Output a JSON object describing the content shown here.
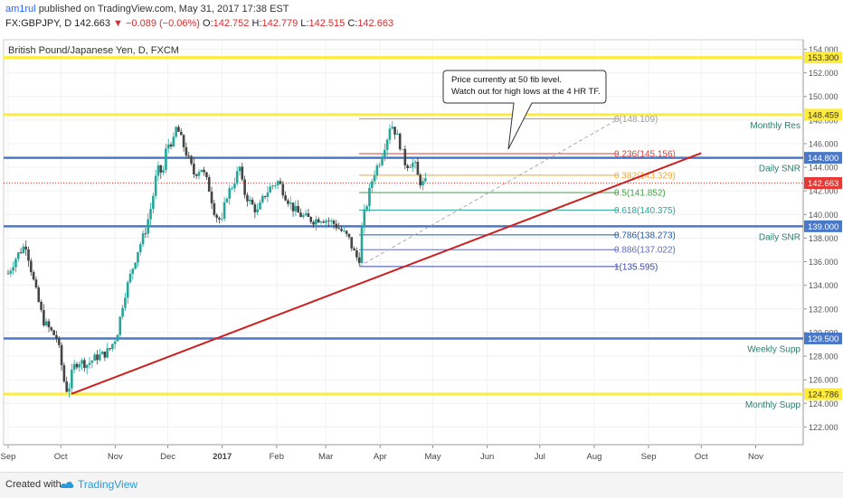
{
  "header": {
    "author": "am1rul",
    "published": "published on TradingView.com, May 31, 2017 17:38 EST",
    "symbol": "FX:GBPJPY, D",
    "last": "142.663",
    "change": "−0.089 (−0.06%)",
    "o_label": "O:",
    "o_value": "142.752",
    "h_label": "H:",
    "h_value": "142.779",
    "l_label": "L:",
    "l_value": "142.515",
    "c_label": "C:",
    "c_value": "142.663"
  },
  "footer": {
    "created_with": "Created with",
    "brand": "TradingView"
  },
  "colors": {
    "up": "#26a69a",
    "down": "#d32f2f",
    "candle_neutral": "#444444",
    "yellow_level": "#ffeb3b",
    "blue_level": "#4a78c8",
    "trendline": "#cc1f1f",
    "price_tag": "#e53935"
  },
  "chart_data": {
    "type": "candlestick",
    "title": "British Pound/Japanese Yen, D, FXCM",
    "ylim": [
      120.5,
      154.8
    ],
    "y_ticks": [
      122,
      124,
      126,
      128,
      130,
      132,
      134,
      136,
      138,
      140,
      142,
      144,
      146,
      148,
      150,
      152,
      154
    ],
    "y_tick_labels": [
      "122.000",
      "124.000",
      "126.000",
      "128.000",
      "130.000",
      "132.000",
      "134.000",
      "136.000",
      "138.000",
      "140.000",
      "142.000",
      "144.000",
      "146.000",
      "148.000",
      "150.000",
      "152.000",
      "154.000"
    ],
    "x_labels": [
      {
        "label": "Sep",
        "bold": false
      },
      {
        "label": "Oct",
        "bold": false
      },
      {
        "label": "Nov",
        "bold": false
      },
      {
        "label": "Dec",
        "bold": false
      },
      {
        "label": "2017",
        "bold": true
      },
      {
        "label": "Feb",
        "bold": false
      },
      {
        "label": "Mar",
        "bold": false
      },
      {
        "label": "Apr",
        "bold": false
      },
      {
        "label": "May",
        "bold": false
      },
      {
        "label": "Jun",
        "bold": false
      },
      {
        "label": "Jul",
        "bold": false
      },
      {
        "label": "Aug",
        "bold": false
      },
      {
        "label": "Sep",
        "bold": false
      },
      {
        "label": "Oct",
        "bold": false
      },
      {
        "label": "Nov",
        "bold": false
      }
    ],
    "horizontal_levels": [
      {
        "price": 153.3,
        "tag": "153.300",
        "label": "",
        "color": "yellow"
      },
      {
        "price": 148.459,
        "tag": "148.459",
        "label": "Monthly Res",
        "color": "yellow"
      },
      {
        "price": 144.8,
        "tag": "144.800",
        "label": "Daily SNR",
        "color": "blue"
      },
      {
        "price": 139.0,
        "tag": "139.000",
        "label": "Daily SNR",
        "color": "blue"
      },
      {
        "price": 129.5,
        "tag": "129.500",
        "label": "Weekly Supp",
        "color": "blue"
      },
      {
        "price": 124.786,
        "tag": "124.786",
        "label": "Monthly Supp",
        "color": "yellow"
      }
    ],
    "current_price": {
      "price": 142.663,
      "tag": "142.663"
    },
    "trendline": {
      "from": {
        "date": "2016-10-07",
        "price": 124.8
      },
      "to": {
        "date": "2017-10-01",
        "price": 145.2
      }
    },
    "fibonacci": [
      {
        "ratio": "0",
        "price": "148.109",
        "color": "#9e9e9e"
      },
      {
        "ratio": "0.236",
        "price": "145.156",
        "color": "#e53935"
      },
      {
        "ratio": "0.382",
        "price": "143.329",
        "color": "#f9a825"
      },
      {
        "ratio": "0.5",
        "price": "141.852",
        "color": "#43a047"
      },
      {
        "ratio": "0.618",
        "price": "140.375",
        "color": "#26a69a"
      },
      {
        "ratio": "0.786",
        "price": "138.273",
        "color": "#1e5aa8"
      },
      {
        "ratio": "0.886",
        "price": "137.022",
        "color": "#5c6bc0"
      },
      {
        "ratio": "1",
        "price": "135.595",
        "color": "#3949ab"
      }
    ],
    "annotation": {
      "lines": [
        "Price currently at 50 fib level.",
        "Watch out for high lows at the 4 HR TF."
      ]
    },
    "series": [
      {
        "name": "",
        "points": [
          [
            0,
            135.0
          ],
          [
            5,
            136.5
          ],
          [
            10,
            137.5
          ],
          [
            15,
            134.0
          ],
          [
            20,
            131.0
          ],
          [
            25,
            130.0
          ],
          [
            28,
            129.5
          ],
          [
            32,
            125.8
          ],
          [
            34,
            124.9
          ],
          [
            37,
            127.0
          ],
          [
            40,
            127.6
          ],
          [
            45,
            127.3
          ],
          [
            50,
            127.9
          ],
          [
            55,
            128.2
          ],
          [
            58,
            128.6
          ],
          [
            62,
            129.8
          ],
          [
            66,
            133.0
          ],
          [
            70,
            135.0
          ],
          [
            74,
            137.0
          ],
          [
            78,
            138.5
          ],
          [
            82,
            141.0
          ],
          [
            84,
            143.0
          ],
          [
            86,
            144.0
          ],
          [
            88,
            143.2
          ],
          [
            90,
            145.5
          ],
          [
            92,
            146.2
          ],
          [
            94,
            146.0
          ],
          [
            96,
            147.5
          ],
          [
            98,
            146.6
          ],
          [
            100,
            145.8
          ],
          [
            103,
            144.6
          ],
          [
            106,
            143.4
          ],
          [
            110,
            144.0
          ],
          [
            114,
            142.5
          ],
          [
            118,
            140.0
          ],
          [
            122,
            139.3
          ],
          [
            124,
            141.5
          ],
          [
            128,
            142.5
          ],
          [
            132,
            144.0
          ],
          [
            134,
            142.0
          ],
          [
            138,
            141.0
          ],
          [
            142,
            140.2
          ],
          [
            146,
            141.6
          ],
          [
            150,
            142.4
          ],
          [
            154,
            142.8
          ],
          [
            158,
            141.6
          ],
          [
            162,
            140.6
          ],
          [
            166,
            140.0
          ],
          [
            170,
            139.7
          ],
          [
            174,
            139.5
          ],
          [
            178,
            139.7
          ],
          [
            182,
            139.5
          ],
          [
            186,
            139.2
          ],
          [
            190,
            138.6
          ],
          [
            194,
            138.0
          ],
          [
            196,
            137.2
          ],
          [
            198,
            136.5
          ],
          [
            200,
            136.1
          ],
          [
            202,
            139.5
          ],
          [
            204,
            140.6
          ],
          [
            206,
            142.0
          ],
          [
            208,
            143.3
          ],
          [
            210,
            144.0
          ],
          [
            212,
            144.6
          ],
          [
            214,
            145.6
          ],
          [
            216,
            146.5
          ],
          [
            218,
            147.8
          ],
          [
            220,
            147.2
          ],
          [
            222,
            146.5
          ],
          [
            224,
            145.6
          ],
          [
            226,
            144.4
          ],
          [
            228,
            144.2
          ],
          [
            230,
            144.4
          ],
          [
            232,
            144.1
          ],
          [
            234,
            142.9
          ],
          [
            236,
            142.6
          ],
          [
            238,
            142.7
          ]
        ]
      }
    ]
  }
}
